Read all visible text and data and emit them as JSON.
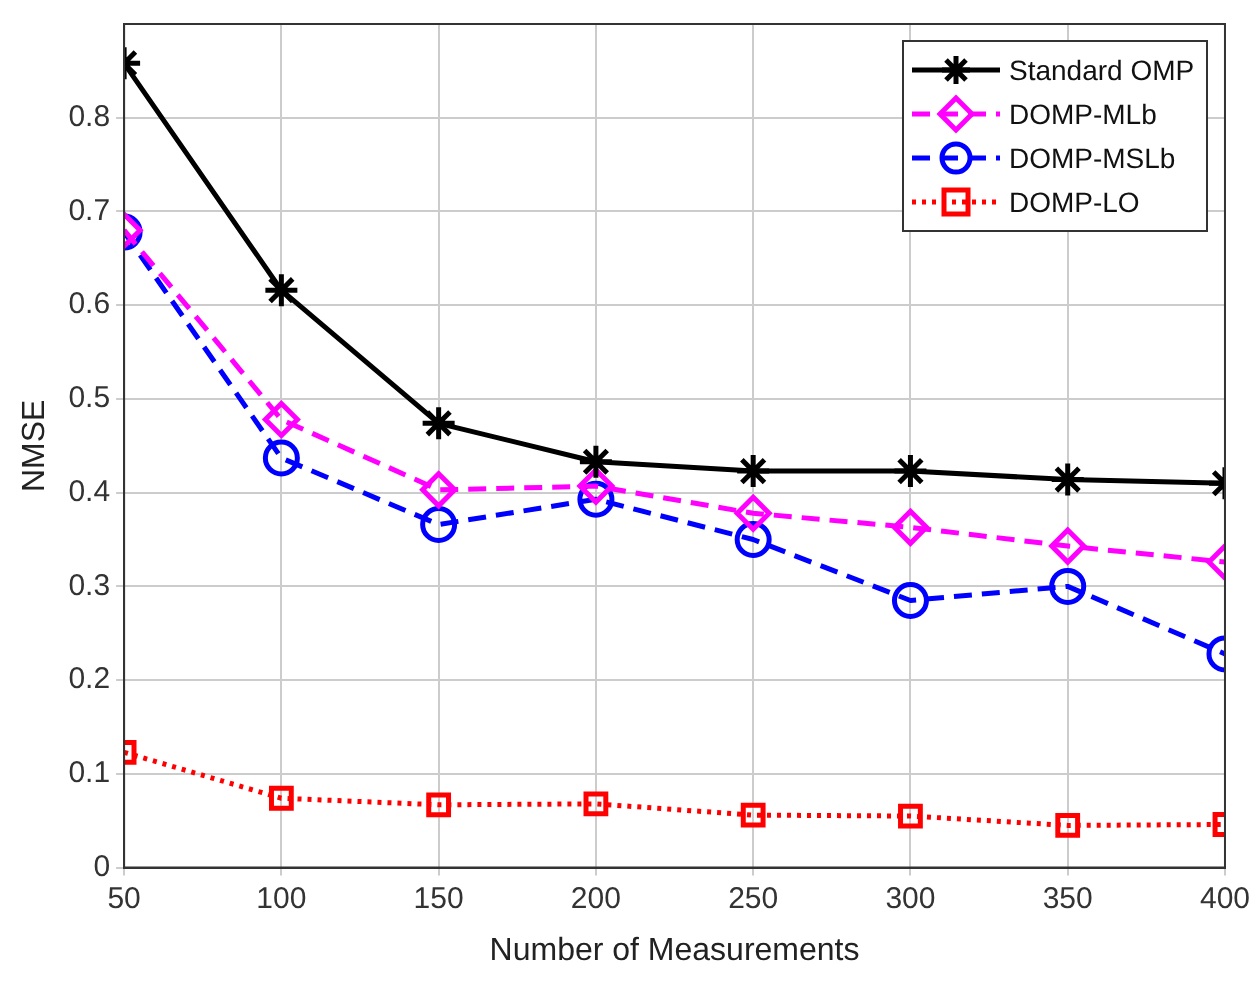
{
  "chart_data": {
    "type": "line",
    "xlabel": "Number of Measurements",
    "ylabel": "NMSE",
    "x": [
      50,
      100,
      150,
      200,
      250,
      300,
      350,
      400
    ],
    "series": [
      {
        "name": "Standard OMP",
        "color": "#000000",
        "marker": "cross",
        "line_style": "solid",
        "values": [
          0.858,
          0.616,
          0.474,
          0.433,
          0.423,
          0.423,
          0.414,
          0.41
        ]
      },
      {
        "name": "DOMP-MLb",
        "color": "#ff00ff",
        "marker": "diamond",
        "line_style": "dashed",
        "values": [
          0.68,
          0.478,
          0.403,
          0.407,
          0.378,
          0.363,
          0.343,
          0.326
        ]
      },
      {
        "name": "DOMP-MSLb",
        "color": "#0000ff",
        "marker": "circle",
        "line_style": "dashed",
        "values": [
          0.678,
          0.437,
          0.366,
          0.393,
          0.35,
          0.285,
          0.3,
          0.228
        ]
      },
      {
        "name": "DOMP-LO",
        "color": "#ff0000",
        "marker": "square",
        "line_style": "dotted",
        "values": [
          0.123,
          0.074,
          0.067,
          0.068,
          0.056,
          0.055,
          0.045,
          0.046
        ]
      }
    ],
    "xlim": [
      50,
      400
    ],
    "xticks": [
      50,
      100,
      150,
      200,
      250,
      300,
      350,
      400
    ],
    "ylim": [
      0,
      0.9
    ],
    "yticks": [
      0,
      0.1,
      0.2,
      0.3,
      0.4,
      0.5,
      0.6,
      0.7,
      0.8
    ],
    "grid": true,
    "legend": "top right"
  }
}
